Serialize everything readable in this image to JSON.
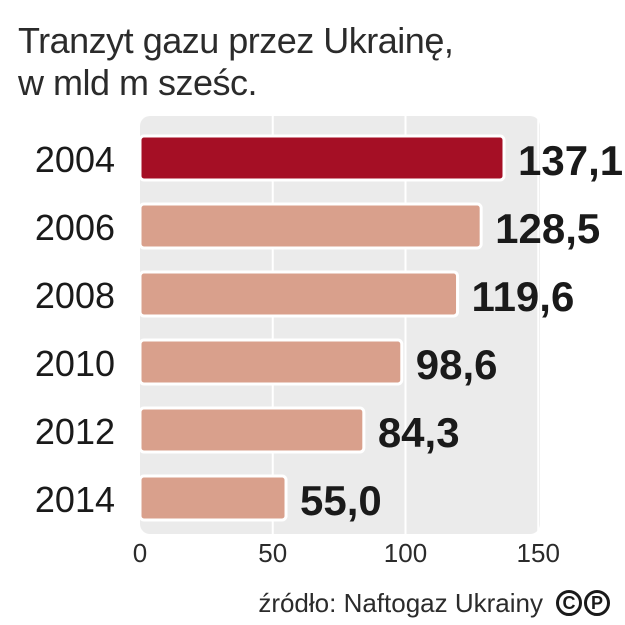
{
  "title_line1": "Tranzyt gazu przez Ukrainę,",
  "title_line2": "w mld m sześc.",
  "source": "źródło: Naftogaz Ukrainy",
  "logo_text": "CP",
  "colors": {
    "highlight": "#a50f25",
    "bar": "#d9a08c",
    "plot_bg": "#ebebeb",
    "grid": "#ffffff",
    "label": "#1a1a1a"
  },
  "chart_data": {
    "type": "bar",
    "orientation": "horizontal",
    "categories": [
      "2004",
      "2006",
      "2008",
      "2010",
      "2012",
      "2014"
    ],
    "values": [
      137.1,
      128.5,
      119.6,
      98.6,
      84.3,
      55.0
    ],
    "value_labels": [
      "137,1",
      "128,5",
      "119,6",
      "98,6",
      "84,3",
      "55,0"
    ],
    "highlight_index": 0,
    "xlim": [
      0,
      150
    ],
    "xticks": [
      0,
      50,
      100,
      150
    ],
    "xtick_labels": [
      "0",
      "50",
      "100",
      "150"
    ],
    "grid": true
  }
}
